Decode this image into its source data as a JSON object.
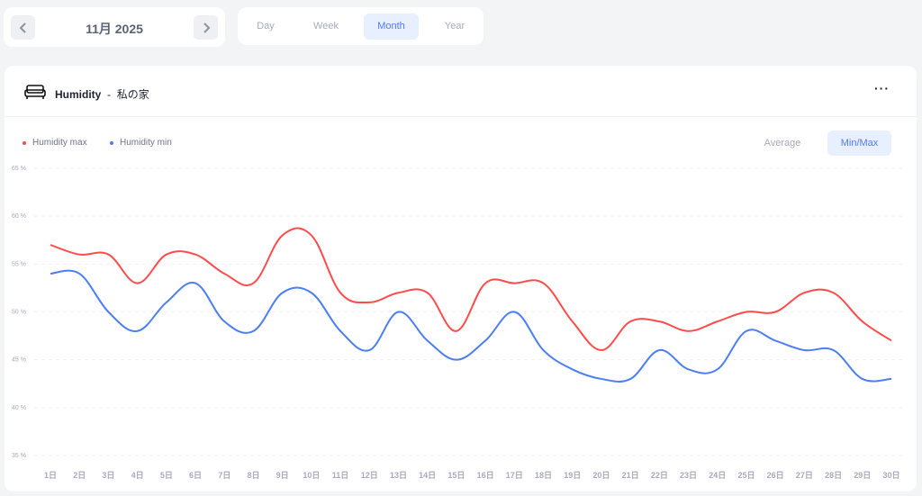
{
  "date_nav": {
    "label": "11月 2025",
    "prev_icon": "chevron-left-icon",
    "next_icon": "chevron-right-icon"
  },
  "period_tabs": [
    {
      "label": "Day"
    },
    {
      "label": "Week"
    },
    {
      "label": "Month",
      "active": true
    },
    {
      "label": "Year"
    }
  ],
  "card": {
    "icon": "sofa-icon",
    "title": "Humidity",
    "separator": "-",
    "location": "私の家",
    "more_label": "···"
  },
  "modes": [
    {
      "label": "Average"
    },
    {
      "label": "Min/Max",
      "active": true
    }
  ],
  "chart_data": {
    "type": "line",
    "ylim": [
      35,
      65
    ],
    "yticks": [
      65,
      60,
      55,
      50,
      45,
      40,
      35
    ],
    "ytick_labels": [
      "65 %",
      "60 %",
      "55 %",
      "50 %",
      "45 %",
      "40 %",
      "35 %"
    ],
    "categories": [
      "1日",
      "2日",
      "3日",
      "4日",
      "5日",
      "6日",
      "7日",
      "8日",
      "9日",
      "10日",
      "11日",
      "12日",
      "13日",
      "14日",
      "15日",
      "16日",
      "17日",
      "18日",
      "19日",
      "20日",
      "21日",
      "22日",
      "23日",
      "24日",
      "25日",
      "26日",
      "27日",
      "28日",
      "29日",
      "30日"
    ],
    "grid": true,
    "legend_position": "top-left",
    "series": [
      {
        "name": "Humidity max",
        "color": "#ff4b4b",
        "values": [
          57,
          56,
          56,
          53,
          56,
          56,
          54,
          53,
          58,
          58,
          52,
          51,
          52,
          52,
          48,
          53,
          53,
          53,
          49,
          46,
          49,
          49,
          48,
          49,
          50,
          50,
          52,
          52,
          49,
          47
        ]
      },
      {
        "name": "Humidity min",
        "color": "#4c7ef3",
        "values": [
          54,
          54,
          50,
          48,
          51,
          53,
          49,
          48,
          52,
          52,
          48,
          46,
          50,
          47,
          45,
          47,
          50,
          46,
          44,
          43,
          43,
          46,
          44,
          44,
          48,
          47,
          46,
          46,
          43,
          43
        ]
      }
    ]
  }
}
